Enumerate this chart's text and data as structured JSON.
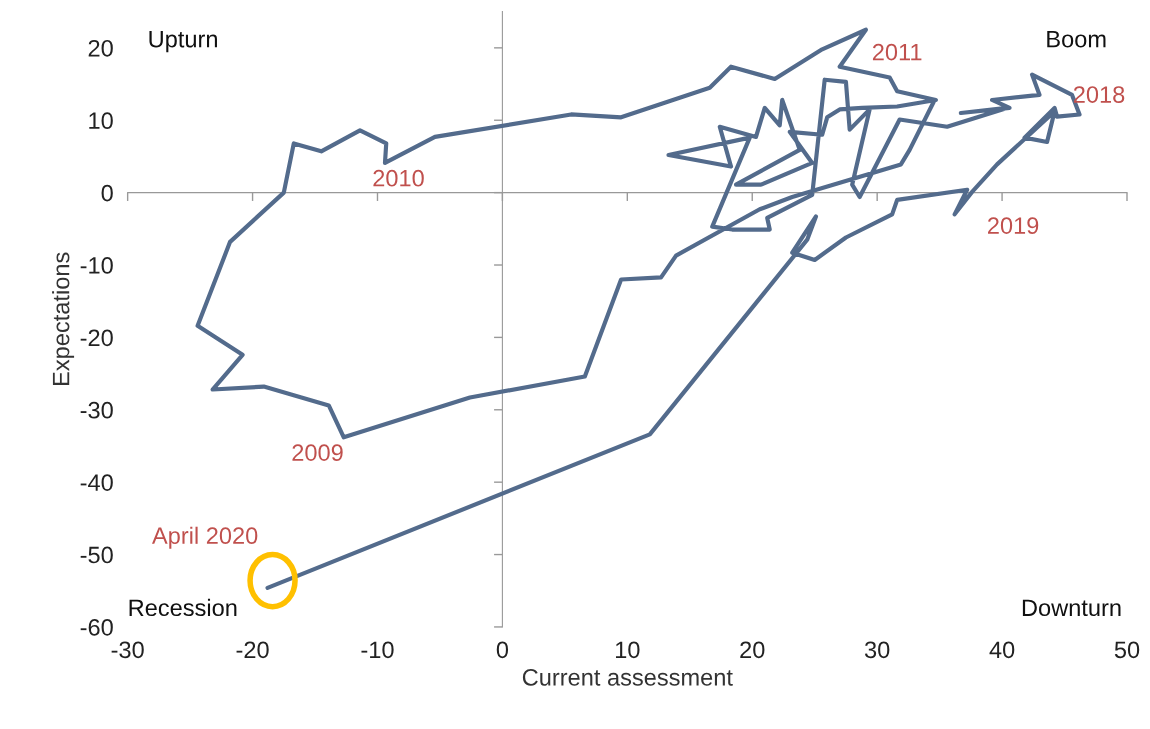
{
  "chart_data": {
    "type": "line",
    "xlabel": "Current assessment",
    "ylabel": "Expectations",
    "series": [
      {
        "color": "#536b8c",
        "x": [
          34.6,
          32.6,
          31.9,
          23.2,
          20.6,
          13.9,
          12.7,
          9.5,
          6.6,
          -2.6,
          -12.7,
          -13.9,
          -19.1,
          -23.2,
          -20.8,
          -24.4,
          -21.8,
          -17.5,
          -16.7,
          -14.5,
          -11.4,
          -9.3,
          -9.4,
          -5.4,
          5.5,
          9.5,
          16.6,
          18.3,
          21.8,
          25.6,
          29.1,
          27.0,
          31.0,
          31.6,
          34.7,
          31.6,
          28.8,
          27.0,
          26.0,
          25.6,
          23.0,
          24.8,
          20.7,
          18.7,
          23.8,
          22.4,
          22.2,
          21.0,
          20.3,
          17.4,
          18.3,
          13.3,
          19.8,
          16.8,
          18.4,
          21.4,
          21.2,
          24.8,
          25.8,
          27.5,
          27.8,
          29.4,
          28.0,
          28.6,
          31.8,
          35.6,
          40.4,
          36.7,
          40.6,
          39.2,
          43.0,
          42.4,
          45.6,
          46.2,
          44.4,
          44.2,
          41.8,
          43.6,
          44.2,
          39.6,
          37.6,
          36.2,
          37.2,
          31.6,
          31.2,
          27.5,
          25.0,
          23.2,
          25.1,
          24.4,
          11.8,
          -18.8
        ],
        "values": [
          12.8,
          5.9,
          3.9,
          -0.6,
          -2.3,
          -8.7,
          -11.7,
          -12.0,
          -25.4,
          -28.3,
          -33.8,
          -29.4,
          -26.8,
          -27.2,
          -22.4,
          -18.4,
          -6.8,
          0.0,
          6.8,
          5.7,
          8.6,
          6.8,
          4.1,
          7.7,
          10.8,
          10.4,
          14.5,
          17.4,
          15.7,
          19.8,
          22.5,
          17.4,
          15.9,
          14.0,
          12.8,
          11.9,
          11.7,
          11.5,
          10.4,
          8.0,
          8.4,
          4.1,
          1.1,
          1.1,
          5.9,
          12.8,
          9.3,
          11.7,
          7.7,
          9.1,
          3.6,
          5.2,
          7.6,
          -4.7,
          -5.1,
          -5.1,
          -3.5,
          -0.3,
          15.6,
          15.3,
          8.7,
          11.5,
          1.1,
          -0.6,
          10.1,
          9.1,
          11.7,
          11.0,
          11.7,
          12.8,
          13.5,
          16.3,
          13.5,
          10.8,
          10.5,
          11.7,
          7.6,
          7.0,
          11.2,
          3.9,
          0.1,
          -3.0,
          0.4,
          -1.0,
          -3.0,
          -6.2,
          -9.3,
          -8.3,
          -3.3,
          -6.5,
          -33.4,
          -54.6
        ]
      }
    ],
    "xlim": [
      -30,
      50
    ],
    "xticks": [
      -30,
      -20,
      -10,
      0,
      10,
      20,
      30,
      40,
      50
    ],
    "ylim": [
      -60,
      25
    ],
    "yticks": [
      -60,
      -50,
      -40,
      -30,
      -20,
      -10,
      0,
      10,
      20
    ],
    "marker": "none",
    "line_style": "solid",
    "legend": false,
    "annotations": [
      "Upturn",
      "Boom",
      "Recession",
      "Downturn",
      "2009",
      "2010",
      "2011",
      "2018",
      "2019",
      "April 2020"
    ]
  }
}
